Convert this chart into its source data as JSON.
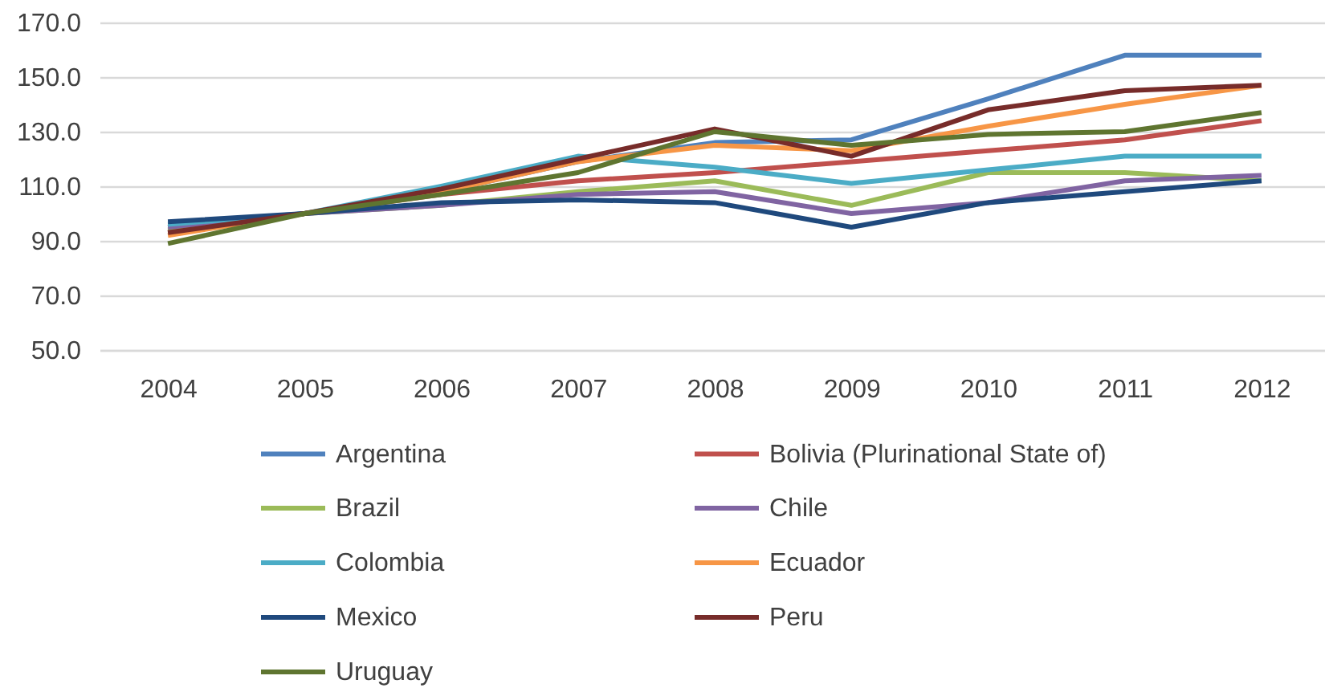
{
  "chart_data": {
    "type": "line",
    "categories": [
      "2004",
      "2005",
      "2006",
      "2007",
      "2008",
      "2009",
      "2010",
      "2011",
      "2012"
    ],
    "series": [
      {
        "name": "Argentina",
        "color": "#4f81bd",
        "values": [
          95,
          100,
          108,
          119,
          126,
          127,
          142,
          158,
          158
        ]
      },
      {
        "name": "Bolivia (Plurinational State of)",
        "color": "#c0504d",
        "values": [
          93,
          100,
          107,
          112,
          115,
          119,
          123,
          127,
          134
        ]
      },
      {
        "name": "Brazil",
        "color": "#9bbb59",
        "values": [
          94,
          100,
          103,
          108,
          112,
          103,
          115,
          115,
          112
        ]
      },
      {
        "name": "Chile",
        "color": "#8064a2",
        "values": [
          95,
          100,
          103,
          107,
          108,
          100,
          104,
          112,
          114
        ]
      },
      {
        "name": "Colombia",
        "color": "#4bacc6",
        "values": [
          96,
          100,
          110,
          121,
          117,
          111,
          116,
          121,
          121
        ]
      },
      {
        "name": "Ecuador",
        "color": "#f79646",
        "values": [
          92,
          100,
          108,
          119,
          125,
          123,
          132,
          140,
          147
        ]
      },
      {
        "name": "Mexico",
        "color": "#1f497d",
        "values": [
          97,
          100,
          104,
          105,
          104,
          95,
          104,
          108,
          112
        ]
      },
      {
        "name": "Peru",
        "color": "#772c2a",
        "values": [
          93,
          100,
          109,
          120,
          131,
          121,
          138,
          145,
          147
        ]
      },
      {
        "name": "Uruguay",
        "color": "#5f7530",
        "values": [
          89,
          100,
          107,
          115,
          130,
          125,
          129,
          130,
          137
        ]
      }
    ],
    "ylim": [
      50,
      170
    ],
    "yticks": [
      {
        "value": 50,
        "label": "50.0"
      },
      {
        "value": 70,
        "label": "70.0"
      },
      {
        "value": 90,
        "label": "90.0"
      },
      {
        "value": 110,
        "label": "110.0"
      },
      {
        "value": 130,
        "label": "130.0"
      },
      {
        "value": 150,
        "label": "150.0"
      },
      {
        "value": 170,
        "label": "170.0"
      }
    ],
    "grid": "y",
    "legend": "bottom",
    "marker": "none",
    "line_style": "solid"
  }
}
